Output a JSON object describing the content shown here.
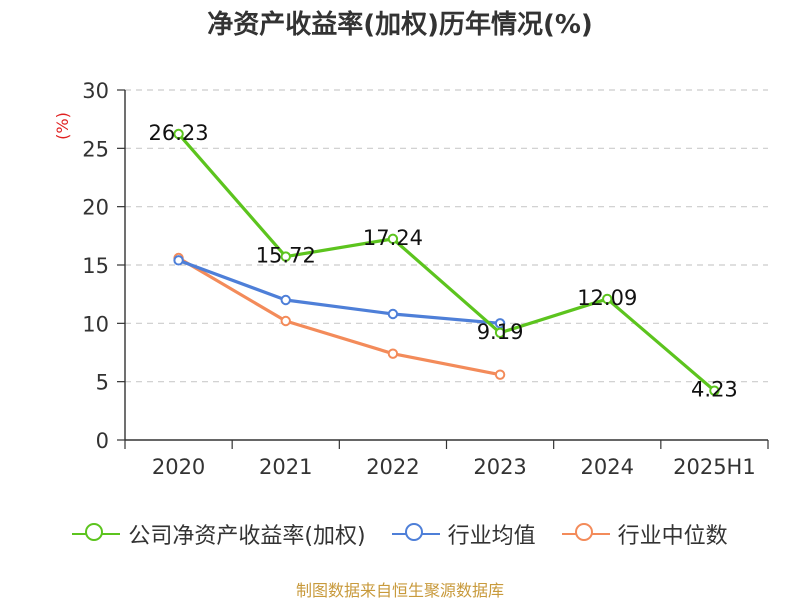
{
  "chart_data": {
    "type": "line",
    "title": "净资产收益率(加权)历年情况(%)",
    "ylabel": "(%)",
    "categories": [
      "2020",
      "2021",
      "2022",
      "2023",
      "2024",
      "2025H1"
    ],
    "ylim": [
      0,
      30
    ],
    "yticks": [
      0,
      5,
      10,
      15,
      20,
      25,
      30
    ],
    "grid": true,
    "legend_position": "bottom",
    "series": [
      {
        "name": "公司净资产收益率(加权)",
        "color": "#5cc41e",
        "values": [
          26.23,
          15.72,
          17.24,
          9.19,
          12.09,
          4.23
        ],
        "labels": [
          "26.23",
          "15.72",
          "17.24",
          "9.19",
          "12.09",
          "4.23"
        ]
      },
      {
        "name": "行业均值",
        "color": "#4e7fd8",
        "values": [
          15.4,
          12.0,
          10.8,
          10.0,
          null,
          null
        ]
      },
      {
        "name": "行业中位数",
        "color": "#f38b5a",
        "values": [
          15.6,
          10.2,
          7.4,
          5.6,
          null,
          null
        ]
      }
    ]
  },
  "ylabel_color": "#e02020",
  "source_note": "制图数据来自恒生聚源数据库"
}
